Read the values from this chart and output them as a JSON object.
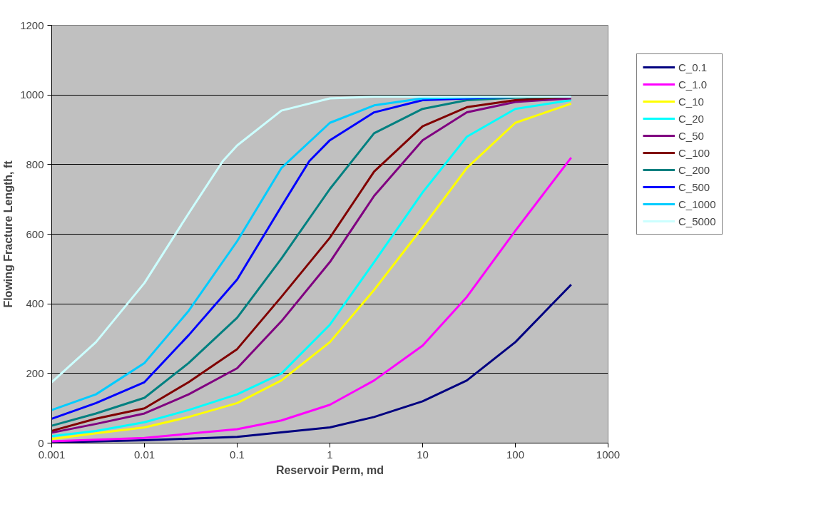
{
  "chart_data": {
    "type": "line",
    "xlabel": "Reservoir Perm, md",
    "ylabel": "Flowing Fracture Length, ft",
    "log": "x",
    "grid": "y",
    "legend": "right",
    "marker": "none",
    "line_style": "solid",
    "xlim": [
      0.001,
      1000
    ],
    "xticks": [
      {
        "value": 0.001,
        "label": "0.001"
      },
      {
        "value": 0.01,
        "label": "0.01"
      },
      {
        "value": 0.1,
        "label": "0.1"
      },
      1,
      10,
      100,
      1000
    ],
    "ylim": [
      0,
      1200
    ],
    "yticks": [
      0,
      200,
      400,
      600,
      800,
      1000,
      1200
    ],
    "series": [
      {
        "name": "C_0.1",
        "color": "#000080",
        "x": [
          0.001,
          0.01,
          0.1,
          1,
          3,
          10,
          30,
          100,
          400
        ],
        "values": [
          2,
          8,
          18,
          45,
          75,
          120,
          180,
          290,
          455
        ]
      },
      {
        "name": "C_1.0",
        "color": "#ff00ff",
        "x": [
          0.001,
          0.01,
          0.1,
          0.3,
          1,
          3,
          10,
          30,
          100,
          400
        ],
        "values": [
          5,
          15,
          40,
          65,
          110,
          180,
          280,
          420,
          610,
          820
        ]
      },
      {
        "name": "C_10",
        "color": "#ffff00",
        "x": [
          0.001,
          0.003,
          0.01,
          0.03,
          0.1,
          0.3,
          1,
          3,
          10,
          30,
          100,
          400
        ],
        "values": [
          12,
          28,
          45,
          75,
          115,
          180,
          290,
          440,
          620,
          790,
          920,
          975
        ]
      },
      {
        "name": "C_20",
        "color": "#00ffff",
        "x": [
          0.001,
          0.003,
          0.01,
          0.03,
          0.1,
          0.3,
          1,
          3,
          10,
          30,
          100,
          400
        ],
        "values": [
          20,
          35,
          60,
          95,
          140,
          200,
          340,
          520,
          720,
          880,
          960,
          985
        ]
      },
      {
        "name": "C_50",
        "color": "#800080",
        "x": [
          0.001,
          0.003,
          0.01,
          0.03,
          0.1,
          0.3,
          1,
          3,
          10,
          30,
          100,
          400
        ],
        "values": [
          30,
          55,
          85,
          140,
          215,
          350,
          520,
          710,
          870,
          950,
          980,
          990
        ]
      },
      {
        "name": "C_100",
        "color": "#800000",
        "x": [
          0.001,
          0.003,
          0.01,
          0.03,
          0.1,
          0.3,
          1,
          3,
          10,
          30,
          100,
          400
        ],
        "values": [
          35,
          70,
          100,
          175,
          270,
          420,
          590,
          780,
          910,
          965,
          985,
          995
        ]
      },
      {
        "name": "C_200",
        "color": "#008080",
        "x": [
          0.001,
          0.003,
          0.01,
          0.03,
          0.1,
          0.3,
          1,
          3,
          10,
          30,
          100,
          400
        ],
        "values": [
          50,
          85,
          130,
          230,
          360,
          530,
          730,
          890,
          960,
          985,
          992,
          995
        ]
      },
      {
        "name": "C_500",
        "color": "#0000ff",
        "x": [
          0.001,
          0.003,
          0.01,
          0.03,
          0.1,
          0.3,
          0.6,
          1,
          3,
          10,
          100,
          400
        ],
        "values": [
          70,
          115,
          175,
          310,
          470,
          680,
          810,
          870,
          950,
          985,
          995,
          995
        ]
      },
      {
        "name": "C_1000",
        "color": "#00ccff",
        "x": [
          0.001,
          0.003,
          0.01,
          0.03,
          0.1,
          0.3,
          1,
          3,
          10,
          100,
          400
        ],
        "values": [
          95,
          140,
          230,
          380,
          580,
          790,
          920,
          970,
          990,
          995,
          995
        ]
      },
      {
        "name": "C_5000",
        "color": "#ccffff",
        "x": [
          0.001,
          0.003,
          0.01,
          0.03,
          0.07,
          0.1,
          0.3,
          1,
          3,
          10,
          100,
          400
        ],
        "values": [
          175,
          290,
          460,
          660,
          810,
          855,
          955,
          990,
          995,
          995,
          995,
          995
        ]
      }
    ]
  }
}
